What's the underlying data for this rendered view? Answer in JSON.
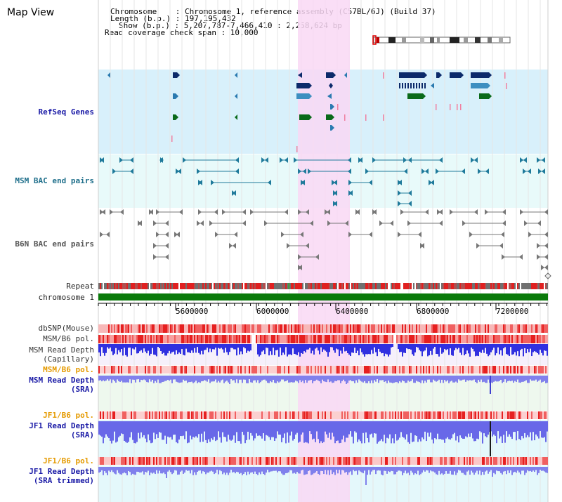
{
  "page": {
    "title": "Map View"
  },
  "info": {
    "chromosome": "Chromosome    : Chromosome 1, reference assembly (C57BL/6J) (Build 37)",
    "length": "Length (b.p.) : 197,195,432",
    "show": "Show (b.p.) : 5,207,787-7,466,410 : 2,258,624 bp",
    "coverage": "Read coverage check span : 10,000"
  },
  "tracks": {
    "refseq": "RefSeq Genes",
    "msm_bac": "MSM BAC end pairs",
    "b6n_bac": "B6N BAC end pairs",
    "repeat": "Repeat",
    "chromosome": "chromosome 1",
    "dbsnp": "dbSNP(Mouse)",
    "msm_b6_pol_1": "MSM/B6 pol.",
    "msm_read_depth_cap_1": "MSM Read Depth",
    "msm_read_depth_cap_2": "(Capillary)",
    "msm_b6_pol_2": "MSM/B6 pol.",
    "msm_read_depth_sra_1": "MSM Read Depth",
    "msm_read_depth_sra_2": "(SRA)",
    "jf1_b6_pol_1": "JF1/B6 pol.",
    "jf1_read_depth_1": "JF1 Read Depth",
    "jf1_read_depth_2": "(SRA)",
    "jf1_b6_pol_2": "JF1/B6 pol.",
    "jf1_trim_1": "JF1 Read Depth",
    "jf1_trim_2": "(SRA trimmed)"
  },
  "axis": {
    "ticks": [
      "5600000",
      "6000000",
      "6400000",
      "6800000",
      "7200000"
    ]
  },
  "colors": {
    "highlight": "#f9d8f4",
    "refseq_bg": "#d8f0fb",
    "msm_bg": "#e8fafa",
    "depth_blue": "#2f2fe0",
    "depth_light": "#8a8af0",
    "snp_red": "#e83030",
    "chrom_green": "#0a7a0a"
  }
}
